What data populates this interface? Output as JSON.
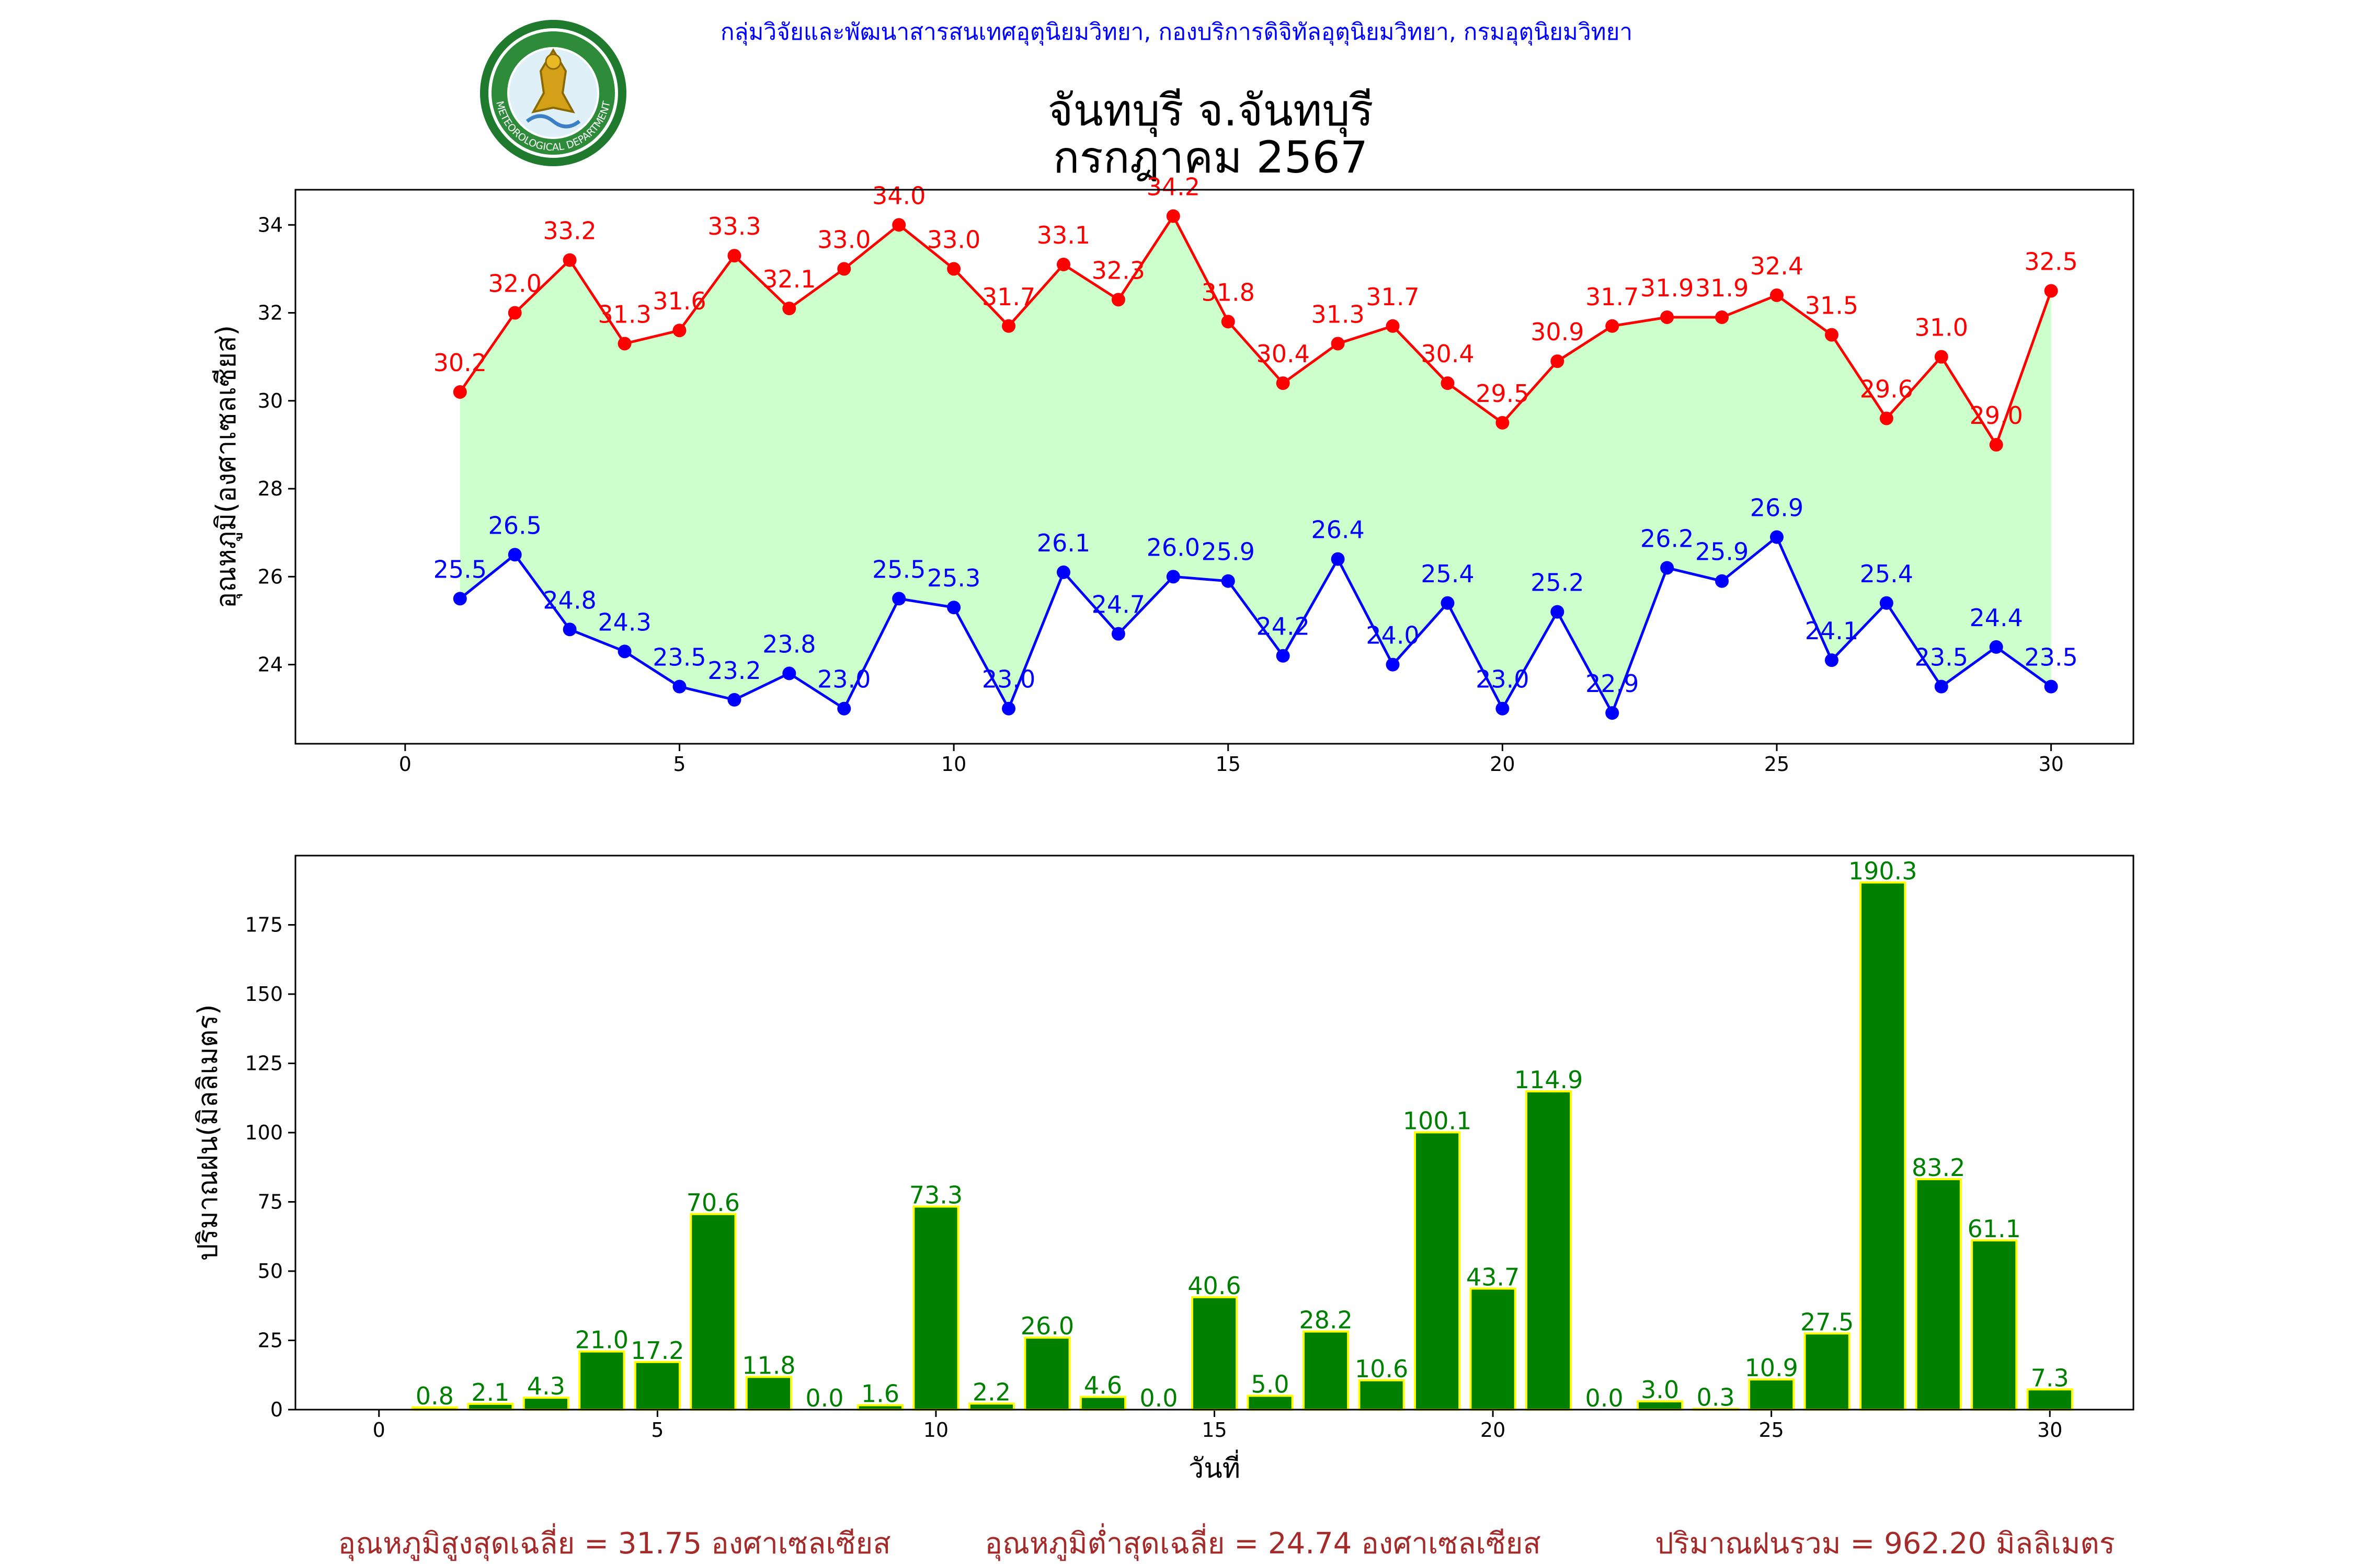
{
  "header": {
    "credit": "กลุ่มวิจัยและพัฒนาสารสนเทศอุตุนิยมวิทยา, กองบริการดิจิทัลอุตุนิยมวิทยา, กรมอุตุนิยมวิทยา",
    "logo_text": "METEOROLOGICAL DEPARTMENT",
    "title_line1": "จันทบุรี จ.จันทบุรี",
    "title_line2": "กรกฎาคม 2567"
  },
  "colors": {
    "max_line": "#ff0000",
    "min_line": "#0000ff",
    "band_fill": "#ccffcc",
    "bar_fill": "#008000",
    "bar_edge": "#ffff00",
    "rain_label": "#008000",
    "summary_text": "#a52a2a"
  },
  "chart_data": [
    {
      "type": "line",
      "ylabel": "อุณหภูมิ(องศาเซลเซียส)",
      "xlabel": "",
      "xlim": [
        -2,
        31.5
      ],
      "ylim": [
        22.2,
        34.8
      ],
      "xticks": [
        0,
        5,
        10,
        15,
        20,
        25,
        30
      ],
      "yticks": [
        24,
        26,
        28,
        30,
        32,
        34
      ],
      "fill_between": true,
      "x": [
        1,
        2,
        3,
        4,
        5,
        6,
        7,
        8,
        9,
        10,
        11,
        12,
        13,
        14,
        15,
        16,
        17,
        18,
        19,
        20,
        21,
        22,
        23,
        24,
        25,
        26,
        27,
        28,
        29,
        30
      ],
      "series": [
        {
          "role": "max",
          "values": [
            30.2,
            32.0,
            33.2,
            31.3,
            31.6,
            33.3,
            32.1,
            33.0,
            34.0,
            33.0,
            31.7,
            33.1,
            32.3,
            34.2,
            31.8,
            30.4,
            31.3,
            31.7,
            30.4,
            29.5,
            30.9,
            31.7,
            31.9,
            31.9,
            32.4,
            31.5,
            29.6,
            31.0,
            29.0,
            32.5
          ]
        },
        {
          "role": "min",
          "values": [
            25.5,
            26.5,
            24.8,
            24.3,
            23.5,
            23.2,
            23.8,
            23.0,
            25.5,
            25.3,
            23.0,
            26.1,
            24.7,
            26.0,
            25.9,
            24.2,
            26.4,
            24.0,
            25.4,
            23.0,
            25.2,
            22.9,
            26.2,
            25.9,
            26.9,
            24.1,
            25.4,
            23.5,
            24.4,
            23.5
          ]
        }
      ]
    },
    {
      "type": "bar",
      "ylabel": "ปริมาณฝน(มิลลิเมตร)",
      "xlabel": "วันที่",
      "xlim": [
        -1.5,
        31.5
      ],
      "ylim": [
        0,
        200
      ],
      "xticks": [
        0,
        5,
        10,
        15,
        20,
        25,
        30
      ],
      "yticks": [
        0,
        25,
        50,
        75,
        100,
        125,
        150,
        175
      ],
      "x": [
        1,
        2,
        3,
        4,
        5,
        6,
        7,
        8,
        9,
        10,
        11,
        12,
        13,
        14,
        15,
        16,
        17,
        18,
        19,
        20,
        21,
        22,
        23,
        24,
        25,
        26,
        27,
        28,
        29,
        30
      ],
      "values": [
        0.8,
        2.1,
        4.3,
        21.0,
        17.2,
        70.6,
        11.8,
        0.0,
        1.6,
        73.3,
        2.2,
        26.0,
        4.6,
        0.0,
        40.6,
        5.0,
        28.2,
        10.6,
        100.1,
        43.7,
        114.9,
        0.0,
        3.0,
        0.3,
        10.9,
        27.5,
        190.3,
        83.2,
        61.1,
        7.3
      ]
    }
  ],
  "summary": {
    "avg_max": "อุณหภูมิสูงสุดเฉลี่ย = 31.75 องศาเซลเซียส",
    "avg_min": "อุณหภูมิต่ำสุดเฉลี่ย = 24.74 องศาเซลเซียส",
    "total_rain": "ปริมาณฝนรวม = 962.20 มิลลิเมตร"
  }
}
